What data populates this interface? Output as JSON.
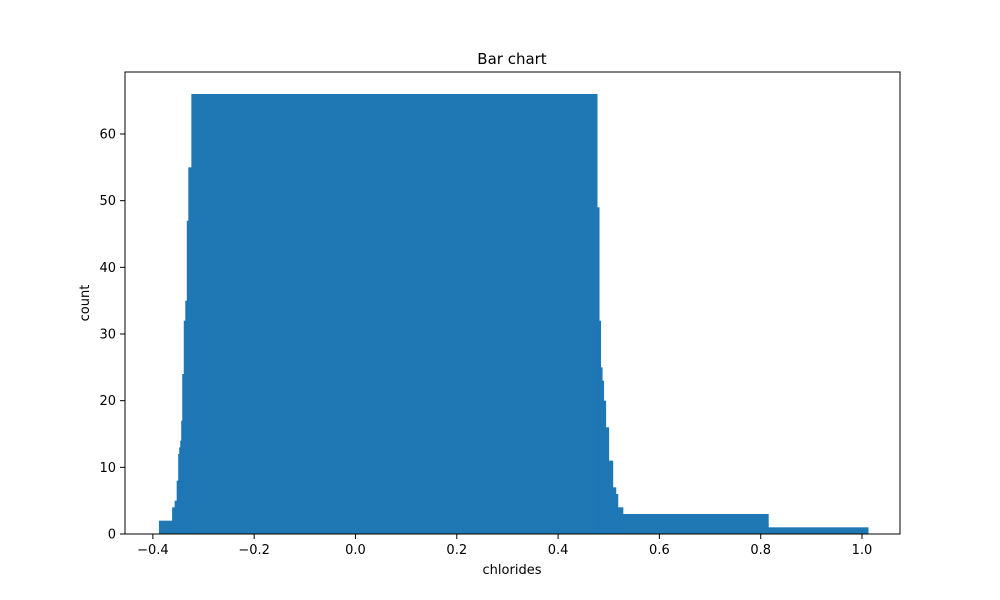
{
  "chart_data": {
    "type": "bar",
    "title": "Bar chart",
    "xlabel": "chlorides",
    "ylabel": "count",
    "xlim": [
      -0.455,
      1.075
    ],
    "ylim": [
      0,
      69.3
    ],
    "x_ticks": [
      -0.4,
      -0.2,
      0.0,
      0.2,
      0.4,
      0.6,
      0.8,
      1.0
    ],
    "x_tick_labels": [
      "−0.4",
      "−0.2",
      "0.0",
      "0.2",
      "0.4",
      "0.6",
      "0.8",
      "1.0"
    ],
    "y_ticks": [
      0,
      10,
      20,
      30,
      40,
      50,
      60
    ],
    "y_tick_labels": [
      "0",
      "10",
      "20",
      "30",
      "40",
      "50",
      "60"
    ],
    "grid": false,
    "bar_color": "#1f77b4",
    "bars": [
      {
        "x0": -0.388,
        "x1": -0.362,
        "value": 2
      },
      {
        "x0": -0.362,
        "x1": -0.357,
        "value": 4
      },
      {
        "x0": -0.357,
        "x1": -0.353,
        "value": 5
      },
      {
        "x0": -0.353,
        "x1": -0.35,
        "value": 8
      },
      {
        "x0": -0.35,
        "x1": -0.348,
        "value": 12
      },
      {
        "x0": -0.348,
        "x1": -0.346,
        "value": 13
      },
      {
        "x0": -0.346,
        "x1": -0.344,
        "value": 14
      },
      {
        "x0": -0.344,
        "x1": -0.342,
        "value": 17
      },
      {
        "x0": -0.342,
        "x1": -0.339,
        "value": 24
      },
      {
        "x0": -0.339,
        "x1": -0.336,
        "value": 32
      },
      {
        "x0": -0.336,
        "x1": -0.333,
        "value": 35
      },
      {
        "x0": -0.333,
        "x1": -0.33,
        "value": 47
      },
      {
        "x0": -0.33,
        "x1": -0.324,
        "value": 55
      },
      {
        "x0": -0.324,
        "x1": 0.477,
        "value": 66
      },
      {
        "x0": 0.477,
        "x1": 0.481,
        "value": 49
      },
      {
        "x0": 0.481,
        "x1": 0.484,
        "value": 32
      },
      {
        "x0": 0.484,
        "x1": 0.487,
        "value": 25
      },
      {
        "x0": 0.487,
        "x1": 0.49,
        "value": 23
      },
      {
        "x0": 0.49,
        "x1": 0.494,
        "value": 20
      },
      {
        "x0": 0.494,
        "x1": 0.5,
        "value": 16
      },
      {
        "x0": 0.5,
        "x1": 0.508,
        "value": 11
      },
      {
        "x0": 0.508,
        "x1": 0.514,
        "value": 7
      },
      {
        "x0": 0.514,
        "x1": 0.518,
        "value": 6
      },
      {
        "x0": 0.518,
        "x1": 0.528,
        "value": 4
      },
      {
        "x0": 0.528,
        "x1": 0.815,
        "value": 3
      },
      {
        "x0": 0.815,
        "x1": 1.012,
        "value": 1
      }
    ]
  }
}
